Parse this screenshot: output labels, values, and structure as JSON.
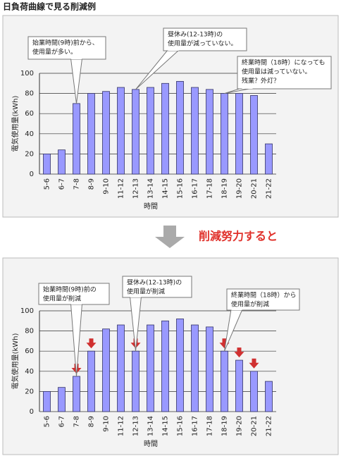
{
  "title": "日負荷曲線で見る削減例",
  "arrow_text": "削減努力すると",
  "chart_data": [
    {
      "type": "bar",
      "categories": [
        "5-6",
        "6-7",
        "7-8",
        "8-9",
        "9-10",
        "11-12",
        "12-13",
        "13-14",
        "14-15",
        "15-16",
        "16-17",
        "17-18",
        "18-19",
        "19-20",
        "20-21",
        "21-22"
      ],
      "values": [
        20,
        24,
        70,
        80,
        82,
        86,
        84,
        86,
        90,
        92,
        86,
        84,
        80,
        80,
        78,
        30
      ],
      "color": "#9999ff",
      "ylabel": "電気使用量(kWh)",
      "xlabel": "時間",
      "ylim": [
        0,
        100
      ],
      "yticks": [
        0,
        20,
        40,
        60,
        80,
        100
      ],
      "grid": true,
      "annotations": [
        {
          "lines": [
            "始業時間(9時)前から、",
            "使用量が多い。"
          ]
        },
        {
          "lines": [
            "昼休み(12-13時)の",
            "使用量が減っていない。"
          ]
        },
        {
          "lines": [
            "終業時間（18時）になっても",
            "使用量は減っていない。",
            "残業？外灯？"
          ]
        }
      ]
    },
    {
      "type": "bar",
      "categories": [
        "5-6",
        "6-7",
        "7-8",
        "8-9",
        "9-10",
        "11-12",
        "12-13",
        "13-14",
        "14-15",
        "15-16",
        "16-17",
        "17-18",
        "18-19",
        "19-20",
        "20-21",
        "21-22"
      ],
      "values": [
        20,
        24,
        35,
        60,
        82,
        86,
        60,
        86,
        90,
        92,
        86,
        84,
        60,
        51,
        40,
        30
      ],
      "color": "#9999ff",
      "ylabel": "電気使用量(kWh)",
      "xlabel": "時間",
      "ylim": [
        0,
        100
      ],
      "yticks": [
        0,
        20,
        40,
        60,
        80,
        100
      ],
      "grid": true,
      "annotations": [
        {
          "lines": [
            "始業時間(9時)前の",
            "使用量が削減"
          ]
        },
        {
          "lines": [
            "昼休み(12-13時)の",
            "使用量が削減"
          ]
        },
        {
          "lines": [
            "終業時間（18時）から",
            "使用量が削減"
          ]
        }
      ]
    }
  ]
}
